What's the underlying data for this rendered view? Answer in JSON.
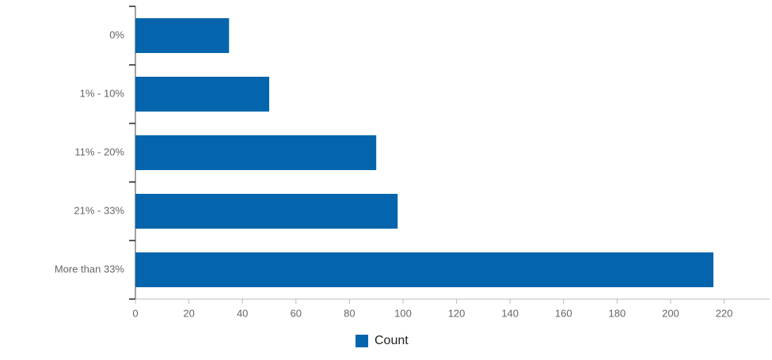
{
  "chart_data": {
    "type": "bar",
    "categories": [
      "0%",
      "1% - 10%",
      "11% - 20%",
      "21% - 33%",
      "More than 33%"
    ],
    "series": [
      {
        "name": "Count",
        "color": "#0565ac",
        "values": [
          35,
          50,
          90,
          98,
          216
        ]
      }
    ],
    "xlim": [
      0,
      237
    ],
    "xticks": [
      0,
      20,
      40,
      60,
      80,
      100,
      120,
      140,
      160,
      180,
      200,
      220
    ],
    "legend": "bottom"
  }
}
